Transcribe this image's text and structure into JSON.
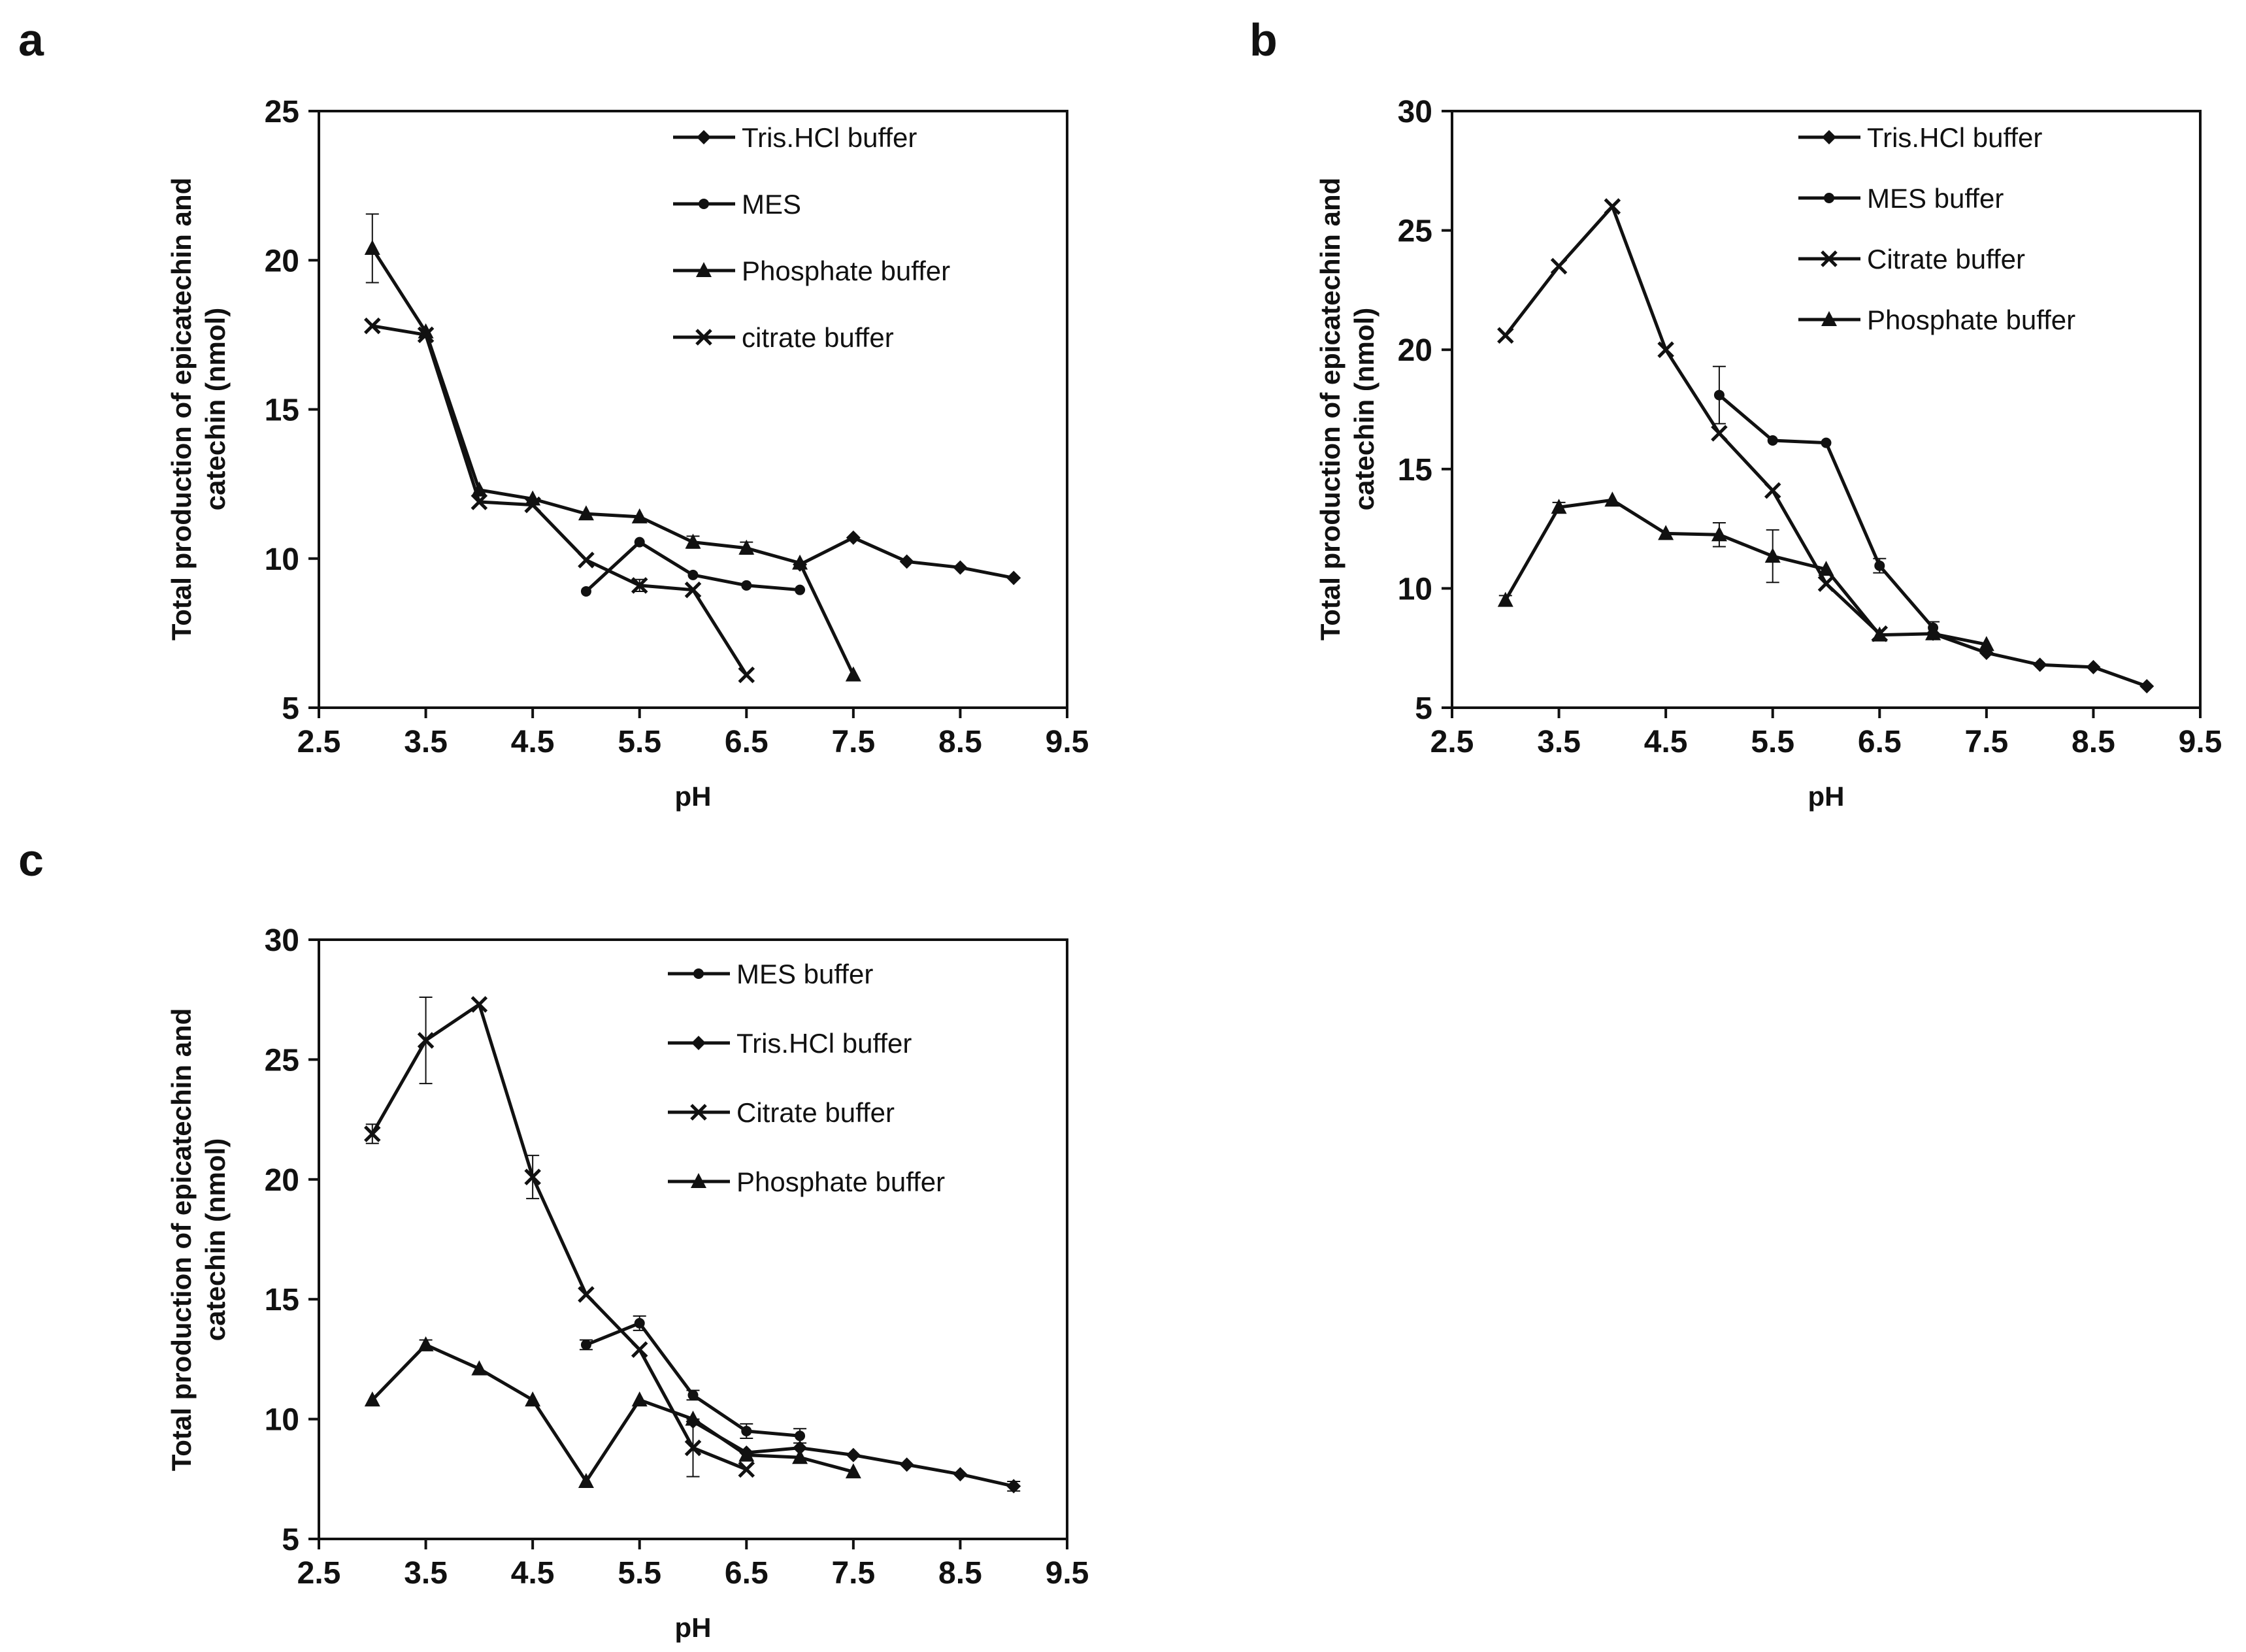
{
  "chart_data": [
    {
      "panel": "a",
      "type": "line",
      "xlabel": "pH",
      "ylabel": [
        "Total production of epicatechin and",
        "catechin (nmol)"
      ],
      "xlim": [
        2.5,
        9.5
      ],
      "ylim": [
        5,
        25
      ],
      "xticks": [
        "2.5",
        "3.5",
        "4.5",
        "5.5",
        "6.5",
        "7.5",
        "8.5",
        "9.5"
      ],
      "yticks": [
        "5",
        "10",
        "15",
        "20",
        "25"
      ],
      "series": [
        {
          "name": "Tris.HCl buffer",
          "marker": "diamond",
          "x": [
            7,
            7.5,
            8,
            8.5,
            9
          ],
          "y": [
            9.8,
            10.7,
            9.9,
            9.7,
            9.35
          ]
        },
        {
          "name": "MES",
          "marker": "circle",
          "x": [
            5,
            5.5,
            6,
            6.5,
            7
          ],
          "y": [
            8.9,
            10.55,
            9.45,
            9.1,
            8.95
          ]
        },
        {
          "name": "Phosphate buffer",
          "marker": "triangle",
          "x": [
            3,
            3.5,
            4,
            4.5,
            5,
            5.5,
            6,
            6.5,
            7,
            7.5
          ],
          "y": [
            20.4,
            17.6,
            12.3,
            12.0,
            11.5,
            11.4,
            10.55,
            10.35,
            9.85,
            6.1
          ],
          "err": [
            1.15,
            0,
            0,
            0,
            0,
            0,
            0.2,
            0.2,
            0,
            0
          ]
        },
        {
          "name": "citrate buffer",
          "marker": "x",
          "x": [
            3,
            3.5,
            4,
            4.5,
            5,
            5.5,
            6,
            6.5
          ],
          "y": [
            17.8,
            17.5,
            11.9,
            11.8,
            9.95,
            9.1,
            8.95,
            6.1
          ],
          "err": [
            0,
            0,
            0,
            0,
            0,
            0.2,
            0,
            0
          ]
        }
      ]
    },
    {
      "panel": "b",
      "type": "line",
      "xlabel": "pH",
      "ylabel": [
        "Total production of epicatechin and",
        "catechin (nmol)"
      ],
      "xlim": [
        2.5,
        9.5
      ],
      "ylim": [
        5,
        30
      ],
      "xticks": [
        "2.5",
        "3.5",
        "4.5",
        "5.5",
        "6.5",
        "7.5",
        "8.5",
        "9.5"
      ],
      "yticks": [
        "5",
        "10",
        "15",
        "20",
        "25",
        "30"
      ],
      "series": [
        {
          "name": "Tris.HCl buffer",
          "marker": "diamond",
          "x": [
            7,
            7.5,
            8,
            8.5,
            9
          ],
          "y": [
            8.1,
            7.3,
            6.8,
            6.7,
            5.9
          ]
        },
        {
          "name": "MES buffer",
          "marker": "circle",
          "x": [
            5,
            5.5,
            6,
            6.5,
            7
          ],
          "y": [
            18.1,
            16.2,
            16.1,
            10.95,
            8.35
          ],
          "err": [
            1.2,
            0,
            0,
            0.3,
            0.25
          ]
        },
        {
          "name": "Citrate buffer",
          "marker": "x",
          "x": [
            3,
            3.5,
            4,
            4.5,
            5,
            5.5,
            6,
            6.5
          ],
          "y": [
            20.6,
            23.5,
            26.0,
            20.0,
            16.5,
            14.1,
            10.2,
            8.1
          ]
        },
        {
          "name": "Phosphate buffer",
          "marker": "triangle",
          "x": [
            3,
            3.5,
            4,
            4.5,
            5,
            5.5,
            6,
            6.5,
            7,
            7.5
          ],
          "y": [
            9.5,
            13.4,
            13.7,
            12.3,
            12.25,
            11.35,
            10.8,
            8.05,
            8.1,
            7.65
          ],
          "err": [
            0.2,
            0.2,
            0,
            0,
            0.5,
            1.1,
            0,
            0,
            0,
            0
          ]
        }
      ]
    },
    {
      "panel": "c",
      "type": "line",
      "xlabel": "pH",
      "ylabel": [
        "Total production of epicatechin and",
        "catechin (nmol)"
      ],
      "xlim": [
        2.5,
        9.5
      ],
      "ylim": [
        5,
        30
      ],
      "xticks": [
        "2.5",
        "3.5",
        "4.5",
        "5.5",
        "6.5",
        "7.5",
        "8.5",
        "9.5"
      ],
      "yticks": [
        "5",
        "10",
        "15",
        "20",
        "25",
        "30"
      ],
      "series": [
        {
          "name": "MES buffer",
          "marker": "circle",
          "x": [
            5,
            5.5,
            6,
            6.5,
            7
          ],
          "y": [
            13.1,
            14.0,
            11.0,
            9.5,
            9.3
          ],
          "err": [
            0.2,
            0.3,
            0.2,
            0.3,
            0.3
          ]
        },
        {
          "name": "Tris.HCl buffer",
          "marker": "diamond",
          "x": [
            6,
            6.5,
            7,
            7.5,
            8,
            8.5,
            9
          ],
          "y": [
            9.9,
            8.6,
            8.8,
            8.5,
            8.1,
            7.7,
            7.2
          ],
          "err": [
            0,
            0,
            0,
            0,
            0,
            0,
            0.2
          ]
        },
        {
          "name": "Citrate buffer",
          "marker": "x",
          "x": [
            3,
            3.5,
            4,
            4.5,
            5,
            5.5,
            6,
            6.5
          ],
          "y": [
            21.9,
            25.8,
            27.3,
            20.1,
            15.2,
            12.9,
            8.8,
            7.9
          ],
          "err": [
            0.4,
            1.8,
            0,
            0.9,
            0,
            0,
            1.2,
            0
          ]
        },
        {
          "name": "Phosphate buffer",
          "marker": "triangle",
          "x": [
            3,
            3.5,
            4,
            4.5,
            5,
            5.5,
            6,
            6.5,
            7,
            7.5
          ],
          "y": [
            10.8,
            13.1,
            12.1,
            10.8,
            7.4,
            10.8,
            10.0,
            8.5,
            8.4,
            7.8
          ],
          "err": [
            0,
            0.2,
            0,
            0,
            0,
            0,
            0,
            0,
            0,
            0
          ]
        }
      ]
    }
  ]
}
